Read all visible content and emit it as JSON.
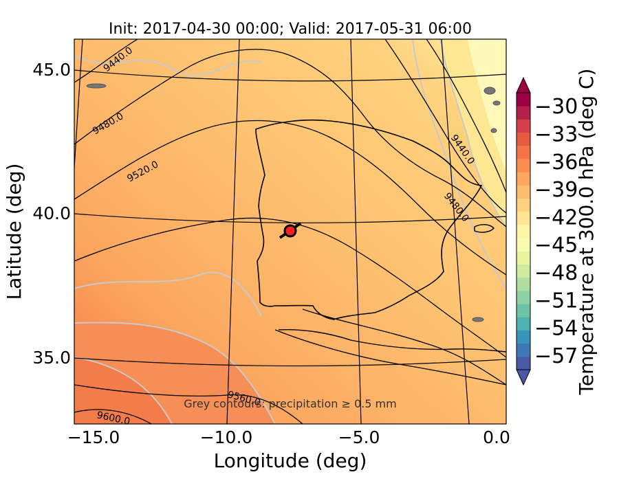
{
  "figure": {
    "title": "Init: 2017-04-30 00:00; Valid: 2017-05-31 06:00",
    "xlabel": "Longitude (deg)",
    "ylabel": "Latitude (deg)",
    "annotation": "Grey contours: precipitation ≥ 0.5 mm",
    "xticks": [
      "−15.0",
      "−10.0",
      "−5.0",
      "0.0"
    ],
    "yticks": [
      "45.0",
      "40.0",
      "35.0"
    ]
  },
  "colorbar": {
    "label": "Temperature at 300.0 hPa (deg C)",
    "ticks": [
      "−30",
      "−33",
      "−36",
      "−39",
      "−42",
      "−45",
      "−48",
      "−51",
      "−54",
      "−57"
    ],
    "min": -58.5,
    "max": -28.5,
    "colors": [
      "#4a58a8",
      "#3f78b6",
      "#3795ba",
      "#4fb0b0",
      "#6ec3a6",
      "#8fd0a4",
      "#b0dea2",
      "#cfeb9f",
      "#e8f49e",
      "#f8fbb0",
      "#fff3a8",
      "#fee593",
      "#fed27e",
      "#fdbd6f",
      "#fca760",
      "#f98e52",
      "#f47447",
      "#e75a40",
      "#d6404e",
      "#b4214b",
      "#9e0142"
    ]
  },
  "map": {
    "point_label": "location-marker",
    "height_contours": [
      "9440.0",
      "9480.0",
      "9520.0",
      "9560.0",
      "9600.0",
      "9440.0",
      "9480.0"
    ]
  }
}
